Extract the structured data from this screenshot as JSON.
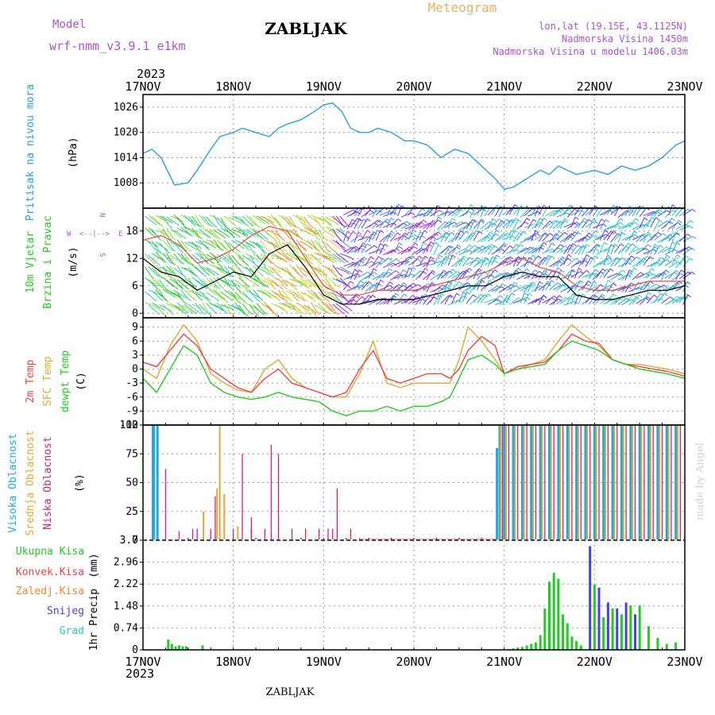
{
  "header": {
    "model_label": "Model",
    "model_name": "wrf-nmm_v3.9.1  e1km",
    "station": "ZABLJAK",
    "product": "Meteogram",
    "coords": "lon,lat (19.15E, 43.1125N)",
    "elevation": "Nadmorska Visina 1450m",
    "model_elevation": "Nadmorska Visina u modelu 1406.03m",
    "year": "2023",
    "footer_station": "ZABLJAK",
    "credit": "made by Angel"
  },
  "colors": {
    "pressure": "#2aa0e0",
    "wind_label": "#22cc22",
    "temp2m": "#ee4444",
    "sfc": "#ddaa33",
    "dew": "#22cc22",
    "high_cloud": "#22aadd",
    "mid_cloud": "#ddaa33",
    "low_cloud": "#cc2288",
    "total_precip": "#22cc22",
    "conv_precip": "#ee4444",
    "frozen": "#ee8833",
    "snow": "#4444dd",
    "hail": "#22ccbb",
    "purple": "#aa55cc",
    "gold": "#e8b060"
  },
  "chart_data": [
    {
      "type": "line",
      "panel": "pressure",
      "ylabel": [
        "Pritisak na nivou mora",
        "(hPa)"
      ],
      "x_categories": [
        "17NOV",
        "18NOV",
        "19NOV",
        "20NOV",
        "21NOV",
        "22NOV",
        "23NOV"
      ],
      "yticks": [
        1008,
        1014,
        1020,
        1026
      ],
      "ylim": [
        1002,
        1029
      ],
      "series": [
        {
          "x": [
            0,
            0.1,
            0.2,
            0.35,
            0.5,
            0.6,
            0.75,
            0.85,
            1.0,
            1.1,
            1.25,
            1.4,
            1.5,
            1.6,
            1.75,
            1.9,
            2.0,
            2.1,
            2.2,
            2.3,
            2.4,
            2.5,
            2.6,
            2.75,
            2.9,
            3.0,
            3.15,
            3.3,
            3.45,
            3.6,
            3.7,
            3.8,
            3.9,
            4.0,
            4.1,
            4.25,
            4.4,
            4.5,
            4.6,
            4.7,
            4.8,
            4.9,
            5.0,
            5.15,
            5.3,
            5.45,
            5.6,
            5.75,
            5.9,
            6.0
          ],
          "y": [
            1015,
            1016,
            1014,
            1007.5,
            1008,
            1011,
            1016,
            1019,
            1020,
            1021,
            1020,
            1019,
            1021,
            1022,
            1023,
            1025,
            1026.5,
            1027,
            1025,
            1021,
            1020,
            1020,
            1021,
            1020,
            1018,
            1018,
            1017,
            1014,
            1016,
            1015,
            1013,
            1011,
            1009,
            1006.5,
            1007,
            1009,
            1011,
            1010,
            1012,
            1011,
            1010,
            1010.5,
            1011,
            1010,
            1012,
            1011,
            1012,
            1014,
            1017,
            1018
          ]
        }
      ]
    },
    {
      "type": "line",
      "panel": "wind",
      "ylabel": [
        "10m Vjetar",
        "Brzina i Pravac",
        "(m/s)"
      ],
      "compass": [
        "N",
        "W",
        "E",
        "S"
      ],
      "yticks": [
        0,
        6,
        12,
        18
      ],
      "ylim": [
        -1,
        23
      ],
      "series": [
        {
          "name": "speed",
          "x": [
            0,
            0.2,
            0.4,
            0.6,
            0.8,
            1.0,
            1.2,
            1.4,
            1.6,
            1.8,
            2.0,
            2.2,
            2.4,
            2.6,
            2.8,
            3.0,
            3.2,
            3.4,
            3.6,
            3.8,
            4.0,
            4.2,
            4.4,
            4.6,
            4.8,
            5.0,
            5.2,
            5.4,
            5.6,
            5.8,
            6.0
          ],
          "y": [
            12,
            9,
            8,
            5,
            7,
            9,
            8,
            13,
            15,
            10,
            4,
            2,
            2,
            3,
            3,
            3,
            4,
            5,
            6,
            6,
            8,
            9,
            8,
            8,
            4,
            3,
            3,
            4,
            5,
            5,
            6
          ]
        },
        {
          "name": "gust",
          "x": [
            0,
            0.2,
            0.4,
            0.6,
            0.8,
            1.0,
            1.2,
            1.4,
            1.6,
            1.8,
            2.0,
            2.2,
            2.4,
            2.6,
            2.8,
            3.0,
            3.2,
            3.4,
            3.6,
            3.8,
            4.0,
            4.2,
            4.4,
            4.6,
            4.8,
            5.0,
            5.2,
            5.4,
            5.6,
            5.8,
            6.0
          ],
          "y": [
            16,
            17,
            15,
            11,
            12,
            14,
            17,
            19,
            18,
            12,
            6,
            4,
            4,
            5,
            5,
            5,
            6,
            7,
            8,
            9,
            11,
            12,
            10,
            9,
            6,
            5,
            5,
            6,
            7,
            7,
            7
          ]
        }
      ]
    },
    {
      "type": "line",
      "panel": "temperature",
      "ylabel": [
        "2m Temp",
        "SFC Temp",
        "dewpt Temp",
        "(C)"
      ],
      "yticks": [
        -12,
        -9,
        -6,
        -3,
        0,
        3,
        6,
        9
      ],
      "ylim": [
        -12,
        11
      ],
      "series": [
        {
          "name": "2m Temp",
          "x": [
            0,
            0.15,
            0.3,
            0.45,
            0.6,
            0.75,
            0.9,
            1.05,
            1.2,
            1.35,
            1.5,
            1.65,
            1.8,
            1.95,
            2.1,
            2.25,
            2.4,
            2.55,
            2.7,
            2.85,
            3.0,
            3.15,
            3.3,
            3.4,
            3.5,
            3.6,
            3.75,
            3.9,
            4.0,
            4.15,
            4.3,
            4.45,
            4.6,
            4.75,
            4.9,
            5.05,
            5.2,
            5.35,
            5.5,
            5.65,
            5.8,
            6.0
          ],
          "y": [
            1.5,
            0.5,
            4,
            7.5,
            5,
            0,
            -2,
            -4,
            -5,
            -2,
            0,
            -3,
            -4,
            -5,
            -6,
            -5,
            0,
            4,
            -2,
            -3,
            -2,
            -1,
            -1,
            -2,
            0,
            4,
            7,
            5,
            -1,
            0.5,
            1,
            1.5,
            4,
            7.5,
            6,
            5.5,
            2,
            1,
            0.5,
            0,
            -0.5,
            -1.5
          ]
        },
        {
          "name": "SFC Temp",
          "x": [
            0,
            0.15,
            0.3,
            0.45,
            0.6,
            0.75,
            0.9,
            1.05,
            1.2,
            1.35,
            1.5,
            1.65,
            1.8,
            1.95,
            2.1,
            2.25,
            2.4,
            2.55,
            2.7,
            2.85,
            3.0,
            3.15,
            3.3,
            3.4,
            3.5,
            3.6,
            3.75,
            3.9,
            4.0,
            4.15,
            4.3,
            4.45,
            4.6,
            4.75,
            4.9,
            5.05,
            5.2,
            5.35,
            5.5,
            5.65,
            5.8,
            6.0
          ],
          "y": [
            0,
            -2,
            5,
            9.5,
            6,
            -1,
            -3,
            -4.5,
            -5,
            0,
            2,
            -2,
            -4,
            -5,
            -6,
            -6,
            -1,
            6,
            -3,
            -4,
            -3,
            -3,
            -3,
            -3,
            2,
            9,
            6,
            2,
            -1,
            0,
            1,
            2,
            6,
            9.5,
            7,
            5,
            2,
            1,
            1,
            0.5,
            0,
            -1
          ]
        },
        {
          "name": "dewpt Temp",
          "x": [
            0,
            0.15,
            0.3,
            0.45,
            0.6,
            0.75,
            0.9,
            1.05,
            1.2,
            1.35,
            1.5,
            1.65,
            1.8,
            1.95,
            2.1,
            2.25,
            2.4,
            2.55,
            2.7,
            2.85,
            3.0,
            3.15,
            3.3,
            3.4,
            3.5,
            3.6,
            3.75,
            3.9,
            4.0,
            4.15,
            4.3,
            4.45,
            4.6,
            4.75,
            4.9,
            5.05,
            5.2,
            5.35,
            5.5,
            5.65,
            5.8,
            6.0
          ],
          "y": [
            -2,
            -5,
            0,
            5,
            3,
            -3,
            -5,
            -6,
            -6.5,
            -6,
            -5,
            -6,
            -6.5,
            -7,
            -9,
            -10,
            -9,
            -9,
            -8,
            -9,
            -8,
            -8,
            -7,
            -6,
            -2,
            2,
            3,
            1,
            -1,
            0,
            0.5,
            1,
            4,
            6,
            5,
            4,
            2,
            1,
            0,
            -0.5,
            -1,
            -2
          ]
        }
      ]
    },
    {
      "type": "bar",
      "panel": "cloud",
      "ylabel": [
        "Visoka Oblacnost",
        "Srednja Oblacnost",
        "Niska Oblacnost",
        "(%)"
      ],
      "yticks": [
        0,
        25,
        50,
        75,
        100
      ],
      "ylim": [
        0,
        100
      ],
      "series": [
        {
          "name": "Visoka Oblacnost",
          "x": [
            0.11,
            0.12,
            0.16,
            3.92,
            3.95,
            4.0,
            4.1,
            4.2,
            4.3,
            4.4,
            4.5,
            4.6,
            4.7,
            4.8,
            4.9,
            5.0,
            5.1,
            5.2,
            5.3,
            5.4,
            5.5,
            5.6,
            5.7,
            5.8,
            5.9
          ],
          "y": [
            100,
            100,
            100,
            80,
            100,
            100,
            100,
            100,
            100,
            100,
            100,
            100,
            100,
            100,
            100,
            100,
            100,
            100,
            100,
            100,
            100,
            100,
            100,
            100,
            100
          ]
        },
        {
          "name": "Srednja Oblacnost",
          "x": [
            0.67,
            0.82,
            0.85,
            0.9,
            1.05,
            1.2,
            3.96,
            4.02,
            4.12,
            4.22,
            4.32,
            4.42,
            4.52,
            4.62,
            4.72,
            4.82,
            4.92,
            5.02,
            5.12,
            5.22,
            5.32,
            5.42,
            5.52,
            5.62,
            5.72,
            5.82,
            5.92
          ],
          "y": [
            25,
            45,
            100,
            40,
            12,
            10,
            100,
            100,
            100,
            100,
            100,
            100,
            100,
            100,
            100,
            100,
            100,
            100,
            100,
            100,
            100,
            100,
            100,
            100,
            100,
            100,
            100
          ]
        },
        {
          "name": "Niska Oblacnost",
          "x": [
            0.25,
            0.4,
            0.55,
            0.6,
            0.75,
            0.8,
            1.0,
            1.1,
            1.2,
            1.35,
            1.42,
            1.5,
            1.65,
            1.8,
            1.95,
            2.05,
            2.1,
            2.15,
            2.3,
            2.4,
            3.98,
            4.05,
            4.15,
            4.25,
            4.35,
            4.45,
            4.55,
            4.65,
            4.75,
            4.85,
            4.95,
            5.05,
            5.15,
            5.25,
            5.35,
            5.45,
            5.55,
            5.65,
            5.75,
            5.85,
            5.95
          ],
          "y": [
            62,
            8,
            10,
            10,
            10,
            38,
            10,
            75,
            20,
            10,
            83,
            75,
            10,
            10,
            10,
            10,
            10,
            45,
            10,
            2,
            100,
            100,
            100,
            100,
            100,
            100,
            100,
            100,
            100,
            100,
            100,
            100,
            100,
            100,
            100,
            100,
            100,
            100,
            100,
            100,
            100
          ]
        }
      ]
    },
    {
      "type": "bar",
      "panel": "precip",
      "ylabel": [
        "1hr Precip",
        "(mm)"
      ],
      "legend": [
        "Ukupna Kisa",
        "Konvek.Kisa",
        "Zaledj.Kisa",
        "Snijeg",
        "Grad"
      ],
      "yticks": [
        0,
        0.74,
        1.48,
        2.22,
        2.96,
        3.7
      ],
      "ytick_labels": [
        "0",
        "0.74",
        "1.48",
        "2.22",
        "2.96",
        "3.7"
      ],
      "ylim": [
        0,
        3.7
      ],
      "series": [
        {
          "name": "Ukupna Kisa",
          "x": [
            0.28,
            0.32,
            0.36,
            0.4,
            0.44,
            0.48,
            0.66,
            4.05,
            4.1,
            4.15,
            4.2,
            4.25,
            4.3,
            4.35,
            4.4,
            4.45,
            4.5,
            4.55,
            4.6,
            4.65,
            4.7,
            4.75,
            4.8,
            4.85,
            5.0,
            5.1,
            5.2,
            5.3,
            5.4,
            5.5,
            5.6,
            5.7,
            5.8,
            5.9
          ],
          "y": [
            0.35,
            0.2,
            0.12,
            0.15,
            0.12,
            0.12,
            0.15,
            0.03,
            0.05,
            0.08,
            0.1,
            0.15,
            0.2,
            0.25,
            0.5,
            1.4,
            2.3,
            2.6,
            2.4,
            1.2,
            0.9,
            0.45,
            0.3,
            0.15,
            2.2,
            1.1,
            1.4,
            1.2,
            1.5,
            1.5,
            0.8,
            0.4,
            0.2,
            0.25
          ]
        },
        {
          "name": "Snijeg",
          "x": [
            4.95,
            5.05,
            5.15,
            5.25,
            5.35,
            5.45
          ],
          "y": [
            3.5,
            2.1,
            1.6,
            1.4,
            1.6,
            1.2
          ]
        }
      ]
    }
  ]
}
